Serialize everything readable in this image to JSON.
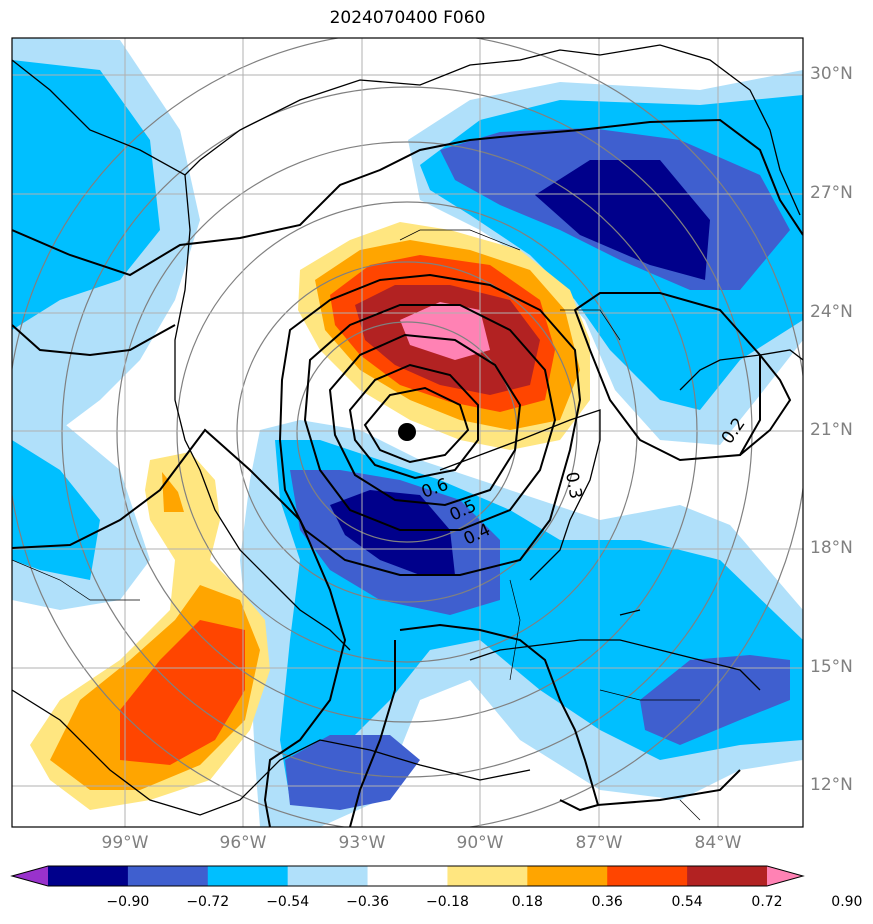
{
  "title": "2024070400 F060",
  "latitude_labels": [
    "30°N",
    "27°N",
    "24°N",
    "21°N",
    "18°N",
    "15°N",
    "12°N"
  ],
  "longitude_labels": [
    "99°W",
    "96°W",
    "93°W",
    "90°W",
    "87°W",
    "84°W"
  ],
  "contour_labels": [
    "0.6",
    "0.5",
    "0.4",
    "0.3",
    "0.2"
  ],
  "colorbar": {
    "ticks": [
      "−0.90",
      "−0.72",
      "−0.54",
      "−0.36",
      "−0.18",
      "0.18",
      "0.36",
      "0.54",
      "0.72",
      "0.90"
    ],
    "colors": [
      "#9932cc",
      "#00008b",
      "#3f5fcf",
      "#00bfff",
      "#b0e0fa",
      "#ffffff",
      "#ffe680",
      "#ffa500",
      "#ff4500",
      "#b22222",
      "#ff82b4"
    ]
  },
  "colors": {
    "grid": "#a9a9a9",
    "range_rings": "#808080",
    "coast": "#000000",
    "center_marker": "#000000"
  },
  "icons": {
    "center_marker": "storm-center-dot"
  }
}
